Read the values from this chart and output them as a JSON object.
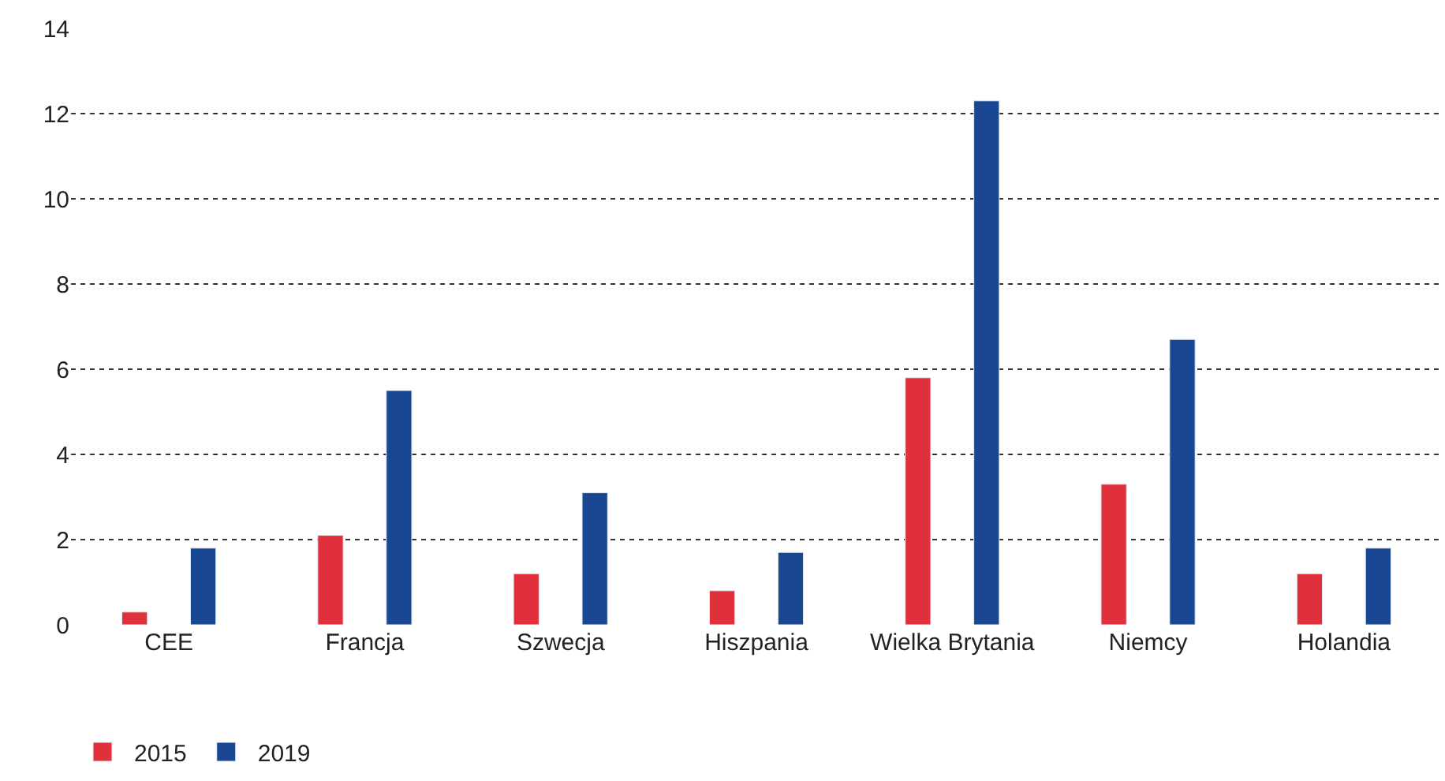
{
  "chart_data": {
    "type": "bar",
    "categories": [
      "CEE",
      "Francja",
      "Szwecja",
      "Hiszpania",
      "Wielka Brytania",
      "Niemcy",
      "Holandia"
    ],
    "series": [
      {
        "name": "2015",
        "color": "#e0303c",
        "values": [
          0.3,
          2.1,
          1.2,
          0.8,
          5.8,
          3.3,
          1.2
        ]
      },
      {
        "name": "2019",
        "color": "#1a4794",
        "values": [
          1.8,
          5.5,
          3.1,
          1.7,
          12.3,
          6.7,
          1.8
        ]
      }
    ],
    "ylim": [
      0,
      14
    ],
    "yticks": [
      0,
      2,
      4,
      6,
      8,
      10,
      12,
      14
    ],
    "grid": "y",
    "legend": "bottom left"
  }
}
